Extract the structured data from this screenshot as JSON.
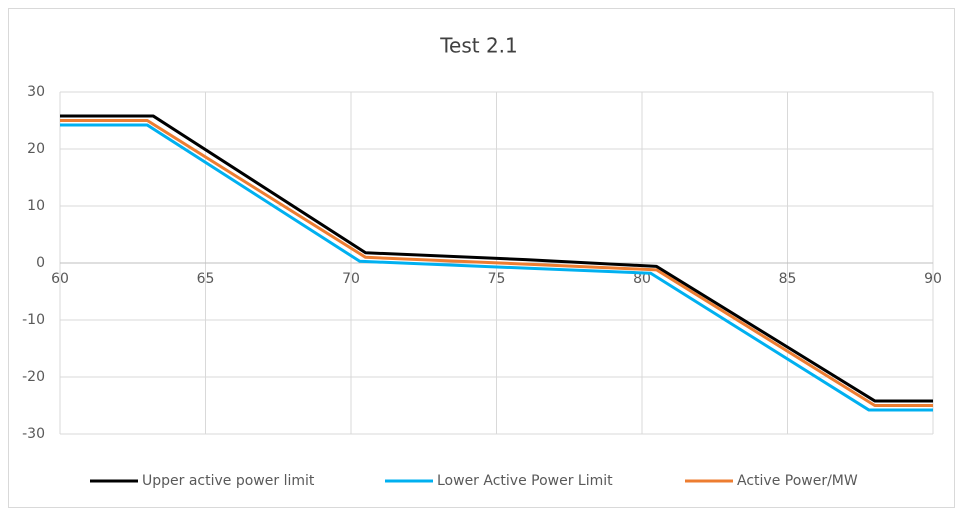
{
  "chart_data": {
    "type": "line",
    "title": "Test 2.1",
    "xlim": [
      60,
      90
    ],
    "xticks": [
      60,
      65,
      70,
      75,
      80,
      85,
      90
    ],
    "ylim": [
      -30,
      30
    ],
    "yticks": [
      -30,
      -20,
      -10,
      0,
      10,
      20,
      30
    ],
    "grid": true,
    "legend": "bottom",
    "series": [
      {
        "name": "Upper active power limit",
        "color": "#000000",
        "x": [
          60,
          63.2,
          70.5,
          76,
          80.5,
          88,
          90
        ],
        "values": [
          25.8,
          25.8,
          1.8,
          0.6,
          -0.6,
          -24.2,
          -24.2
        ]
      },
      {
        "name": "Lower Active Power Limit",
        "color": "#00b0f0",
        "x": [
          60,
          63,
          70.3,
          76,
          80.3,
          87.8,
          90
        ],
        "values": [
          24.2,
          24.2,
          0.3,
          -0.9,
          -1.8,
          -25.8,
          -25.8
        ]
      },
      {
        "name": "Active Power/MW",
        "color": "#ed7d31",
        "x": [
          60,
          63,
          70.5,
          76,
          80.5,
          88,
          90
        ],
        "values": [
          25,
          25,
          1,
          -0.2,
          -1.2,
          -25,
          -25
        ]
      }
    ]
  }
}
